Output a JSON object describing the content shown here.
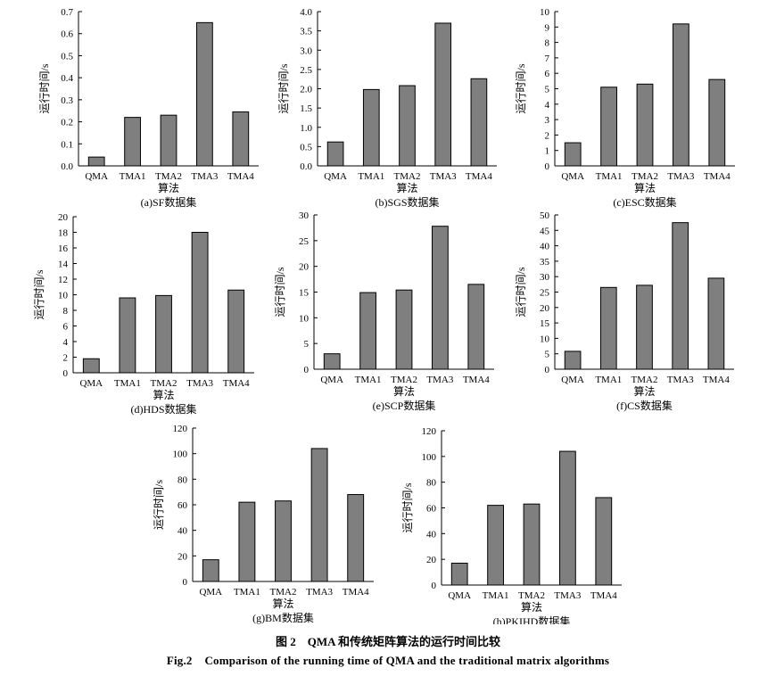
{
  "figure": {
    "caption_zh_number": "图 2",
    "caption_zh_text": "QMA 和传统矩阵算法的运行时间比较",
    "caption_en_number": "Fig.2",
    "caption_en_text": "Comparison of the running time of QMA and the traditional matrix algorithms",
    "bar_color": "#7f7f7f"
  },
  "chart_data": [
    {
      "type": "bar",
      "title": "(a)SF数据集",
      "xlabel": "算法",
      "ylabel": "运行时间/s",
      "categories": [
        "QMA",
        "TMA1",
        "TMA2",
        "TMA3",
        "TMA4"
      ],
      "values": [
        0.04,
        0.22,
        0.23,
        0.65,
        0.245
      ],
      "ylim": [
        0,
        0.7
      ],
      "yticks": [
        0.0,
        0.1,
        0.2,
        0.3,
        0.4,
        0.5,
        0.6,
        0.7
      ],
      "ytick_labels": [
        "0.0",
        "0.1",
        "0.2",
        "0.3",
        "0.4",
        "0.5",
        "0.6",
        "0.7"
      ]
    },
    {
      "type": "bar",
      "title": "(b)SGS数据集",
      "xlabel": "算法",
      "ylabel": "运行时间/s",
      "categories": [
        "QMA",
        "TMA1",
        "TMA2",
        "TMA3",
        "TMA4"
      ],
      "values": [
        0.62,
        1.98,
        2.08,
        3.7,
        2.26
      ],
      "ylim": [
        0,
        4.0
      ],
      "yticks": [
        0,
        0.5,
        1.0,
        1.5,
        2.0,
        2.5,
        3.0,
        3.5,
        4.0
      ],
      "ytick_labels": [
        "0.0",
        "0.5",
        "1.0",
        "1.5",
        "2.0",
        "2.5",
        "3.0",
        "3.5",
        "4.0"
      ]
    },
    {
      "type": "bar",
      "title": "(c)ESC数据集",
      "xlabel": "算法",
      "ylabel": "运行时间/s",
      "categories": [
        "QMA",
        "TMA1",
        "TMA2",
        "TMA3",
        "TMA4"
      ],
      "values": [
        1.5,
        5.1,
        5.3,
        9.2,
        5.6
      ],
      "ylim": [
        0,
        10
      ],
      "yticks": [
        0,
        1,
        2,
        3,
        4,
        5,
        6,
        7,
        8,
        9,
        10
      ],
      "ytick_labels": [
        "0",
        "1",
        "2",
        "3",
        "4",
        "5",
        "6",
        "7",
        "8",
        "9",
        "10"
      ]
    },
    {
      "type": "bar",
      "title": "(d)HDS数据集",
      "xlabel": "算法",
      "ylabel": "运行时间/s",
      "categories": [
        "QMA",
        "TMA1",
        "TMA2",
        "TMA3",
        "TMA4"
      ],
      "values": [
        1.8,
        9.6,
        9.9,
        18.0,
        10.6
      ],
      "ylim": [
        0,
        20
      ],
      "yticks": [
        0,
        2,
        4,
        6,
        8,
        10,
        12,
        14,
        16,
        18,
        20
      ],
      "ytick_labels": [
        "0",
        "2",
        "4",
        "6",
        "8",
        "10",
        "12",
        "14",
        "16",
        "18",
        "20"
      ]
    },
    {
      "type": "bar",
      "title": "(e)SCP数据集",
      "xlabel": "算法",
      "ylabel": "运行时间/s",
      "categories": [
        "QMA",
        "TMA1",
        "TMA2",
        "TMA3",
        "TMA4"
      ],
      "values": [
        3.0,
        14.9,
        15.4,
        27.8,
        16.5
      ],
      "ylim": [
        0,
        30
      ],
      "yticks": [
        0,
        5,
        10,
        15,
        20,
        25,
        30
      ],
      "ytick_labels": [
        "0",
        "5",
        "10",
        "15",
        "20",
        "25",
        "30"
      ]
    },
    {
      "type": "bar",
      "title": "(f)CS数据集",
      "xlabel": "算法",
      "ylabel": "运行时间/s",
      "categories": [
        "QMA",
        "TMA1",
        "TMA2",
        "TMA3",
        "TMA4"
      ],
      "values": [
        5.8,
        26.5,
        27.2,
        47.5,
        29.5
      ],
      "ylim": [
        0,
        50
      ],
      "yticks": [
        0,
        5,
        10,
        15,
        20,
        25,
        30,
        35,
        40,
        45,
        50
      ],
      "ytick_labels": [
        "0",
        "5",
        "10",
        "15",
        "20",
        "25",
        "30",
        "35",
        "40",
        "45",
        "50"
      ]
    },
    {
      "type": "bar",
      "title": "(g)BM数据集",
      "xlabel": "算法",
      "ylabel": "运行时间/s",
      "categories": [
        "QMA",
        "TMA1",
        "TMA2",
        "TMA3",
        "TMA4"
      ],
      "values": [
        17,
        62,
        63,
        104,
        68
      ],
      "ylim": [
        0,
        120
      ],
      "yticks": [
        0,
        20,
        40,
        60,
        80,
        100,
        120
      ],
      "ytick_labels": [
        "0",
        "20",
        "40",
        "60",
        "80",
        "100",
        "120"
      ]
    },
    {
      "type": "bar",
      "title": "(h)PKIHD数据集",
      "xlabel": "算法",
      "ylabel": "运行时间/s",
      "categories": [
        "QMA",
        "TMA1",
        "TMA2",
        "TMA3",
        "TMA4"
      ],
      "values": [
        17,
        62,
        63,
        104,
        68
      ],
      "ylim": [
        0,
        120
      ],
      "yticks": [
        0,
        20,
        40,
        60,
        80,
        100,
        120
      ],
      "ytick_labels": [
        "0",
        "20",
        "40",
        "60",
        "80",
        "100",
        "120"
      ]
    }
  ]
}
